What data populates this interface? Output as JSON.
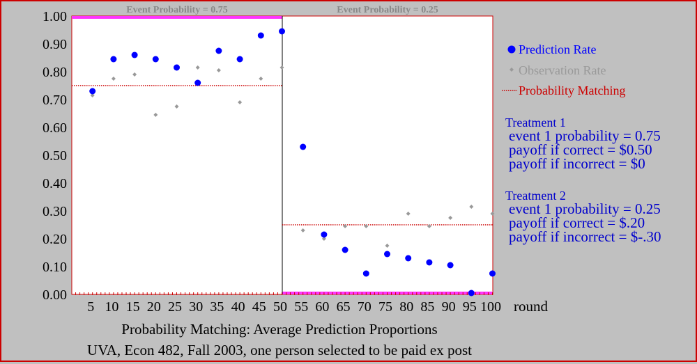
{
  "chart_data": {
    "type": "scatter",
    "title": "Probability Matching: Average Prediction Proportions",
    "subtitle": "UVA, Econ 482, Fall 2003, one person selected to be paid ex post",
    "xlabel": "round",
    "ylabel": "",
    "xlim": [
      0,
      100
    ],
    "ylim": [
      0,
      1
    ],
    "yticks": [
      "0.00",
      "0.10",
      "0.20",
      "0.30",
      "0.40",
      "0.50",
      "0.60",
      "0.70",
      "0.80",
      "0.90",
      "1.00"
    ],
    "xticks": [
      5,
      10,
      15,
      20,
      25,
      30,
      35,
      40,
      45,
      50,
      55,
      60,
      65,
      70,
      75,
      80,
      85,
      90,
      95,
      100
    ],
    "grid": false,
    "legend_position": "right",
    "regions": [
      {
        "label": "Event Probability = 0.75",
        "x_from": 0,
        "x_to": 50
      },
      {
        "label": "Event Probability = 0.25",
        "x_from": 50,
        "x_to": 100
      }
    ],
    "divider_x": 50,
    "series": [
      {
        "name": "Prediction Rate",
        "color": "#0000ff",
        "x": [
          5,
          10,
          15,
          20,
          25,
          30,
          35,
          40,
          45,
          50,
          55,
          60,
          65,
          70,
          75,
          80,
          85,
          90,
          95,
          100
        ],
        "y": [
          0.73,
          0.845,
          0.86,
          0.845,
          0.815,
          0.76,
          0.875,
          0.845,
          0.93,
          0.945,
          0.53,
          0.215,
          0.16,
          0.075,
          0.145,
          0.13,
          0.115,
          0.105,
          0.005,
          0.075
        ]
      },
      {
        "name": "Observation Rate",
        "color": "#999999",
        "x": [
          5,
          10,
          15,
          20,
          25,
          30,
          35,
          40,
          45,
          50,
          55,
          60,
          65,
          70,
          75,
          80,
          85,
          90,
          95,
          100
        ],
        "y": [
          0.715,
          0.775,
          0.79,
          0.645,
          0.675,
          0.815,
          0.805,
          0.69,
          0.775,
          0.815,
          0.23,
          0.2,
          0.245,
          0.245,
          0.175,
          0.29,
          0.245,
          0.275,
          0.315,
          0.29
        ]
      }
    ],
    "reference_lines": [
      {
        "name": "Probability Matching",
        "color": "#cc0000",
        "style": "dotted",
        "segments": [
          {
            "x_from": 0,
            "x_to": 50,
            "y": 0.75
          },
          {
            "x_from": 50,
            "x_to": 100,
            "y": 0.25
          }
        ]
      }
    ],
    "treatments": [
      {
        "title": "Treatment 1",
        "lines": [
          "event 1 probability = 0.75",
          "payoff if correct = $0.50",
          "payoff if incorrect = $0"
        ]
      },
      {
        "title": "Treatment 2",
        "lines": [
          "event 1 probability = 0.25",
          "payoff if correct = $.20",
          "payoff if incorrect = $-.30"
        ]
      }
    ]
  }
}
